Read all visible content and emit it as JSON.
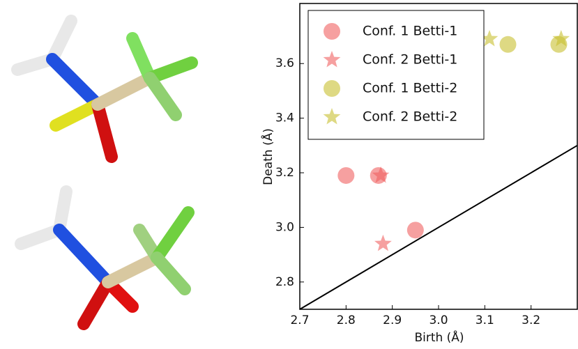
{
  "chart_data": {
    "type": "scatter",
    "xlabel": "Birth (Å)",
    "ylabel": "Death (Å)",
    "xlim": [
      2.7,
      3.3
    ],
    "ylim": [
      2.7,
      3.82
    ],
    "xticks": [
      2.7,
      2.8,
      2.9,
      {
        "value": 3,
        "label": "3.0"
      },
      3.1,
      3.2
    ],
    "yticks": [
      2.8,
      {
        "value": 3,
        "label": "3.0"
      },
      3.2,
      3.4,
      3.6
    ],
    "diagonal": true,
    "legend": "upper left",
    "series": [
      {
        "name": "Conf. 1 Betti-1",
        "marker": "circle",
        "color": "#f06060",
        "x": [
          2.8,
          2.87,
          2.95
        ],
        "y": [
          3.19,
          3.19,
          2.99
        ]
      },
      {
        "name": "Conf. 2 Betti-1",
        "marker": "star",
        "color": "#f06060",
        "x": [
          2.875,
          2.88
        ],
        "y": [
          3.19,
          2.94
        ]
      },
      {
        "name": "Conf. 1 Betti-2",
        "marker": "circle",
        "color": "#c8c030",
        "x": [
          3.15,
          3.26
        ],
        "y": [
          3.67,
          3.67
        ]
      },
      {
        "name": "Conf. 2 Betti-2",
        "marker": "star",
        "color": "#c8c030",
        "x": [
          3.11,
          3.265
        ],
        "y": [
          3.69,
          3.69
        ]
      }
    ]
  }
}
